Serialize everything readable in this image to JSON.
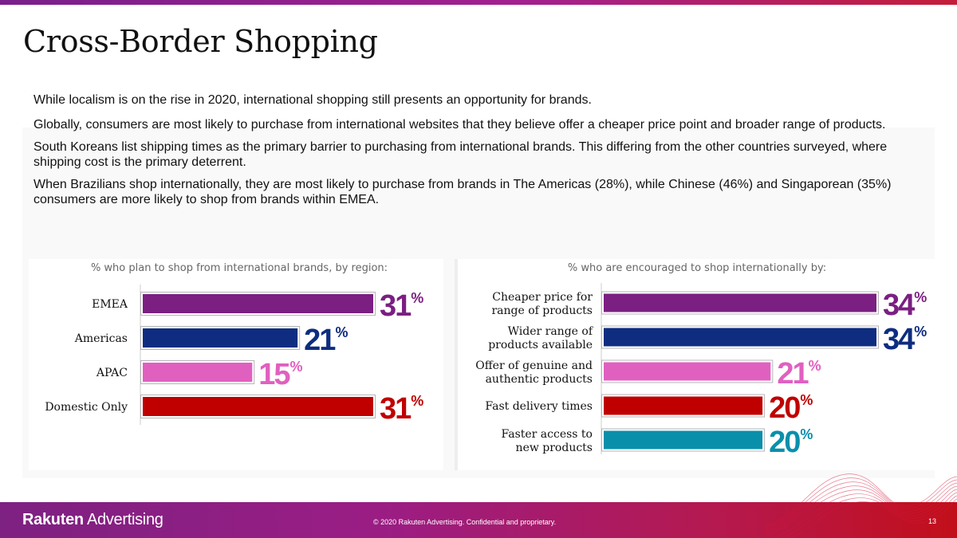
{
  "slide": {
    "title": "Cross-Border Shopping",
    "paragraphs": [
      "While localism is on the rise in 2020, international shopping still presents an opportunity for brands.",
      "Globally, consumers are most likely to purchase from international websites that they believe offer a cheaper price point and broader range of products.",
      "South Koreans list shipping times as the primary barrier to purchasing from international brands. This differing from the other countries surveyed, where shipping cost is the primary deterrent.",
      "When Brazilians shop internationally, they are most likely to purchase from brands in The Americas (28%), while Chinese (46%) and Singaporean (35%) consumers are more likely to shop from brands within EMEA."
    ]
  },
  "footer": {
    "logo_bold": "Rakuten",
    "logo_light": " Advertising",
    "copyright": "© 2020 Rakuten Advertising. Confidential and proprietary.",
    "page_number": "13"
  },
  "chart_data": [
    {
      "type": "bar",
      "orientation": "horizontal",
      "title": "% who plan to shop from international brands, by region:",
      "categories": [
        [
          "EMEA"
        ],
        [
          "Americas"
        ],
        [
          "APAC"
        ],
        [
          "Domestic Only"
        ]
      ],
      "values": [
        31,
        21,
        15,
        31
      ],
      "unit": "%",
      "colors": [
        "#7b1f82",
        "#0e2d80",
        "#e060c0",
        "#c00000"
      ],
      "xlim": [
        0,
        31
      ]
    },
    {
      "type": "bar",
      "orientation": "horizontal",
      "title": "% who are encouraged to shop internationally by:",
      "categories": [
        [
          "Cheaper price for",
          "range of products"
        ],
        [
          "Wider range of",
          "products available"
        ],
        [
          "Offer of genuine and",
          "authentic products"
        ],
        [
          "Fast delivery times"
        ],
        [
          "Faster access to",
          "new products"
        ]
      ],
      "values": [
        34,
        34,
        21,
        20,
        20
      ],
      "unit": "%",
      "colors": [
        "#7b1f82",
        "#0e2d80",
        "#e060c0",
        "#c00000",
        "#0a8fab"
      ],
      "xlim": [
        0,
        34
      ]
    }
  ]
}
